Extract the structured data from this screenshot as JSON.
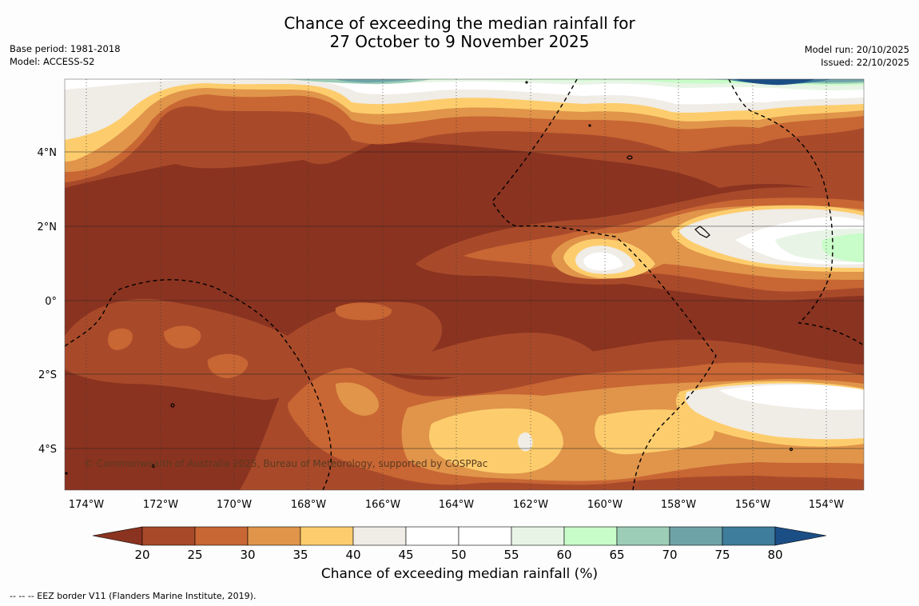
{
  "header": {
    "title_line1": "Chance of exceeding the median rainfall for",
    "title_line2": "27 October to 9 November 2025",
    "base_period": "Base period: 1981-2018",
    "model": "Model: ACCESS-S2",
    "model_run": "Model run: 20/10/2025",
    "issued": "Issued: 22/10/2025"
  },
  "map": {
    "x_ticks": [
      "174°W",
      "172°W",
      "170°W",
      "168°W",
      "166°W",
      "164°W",
      "162°W",
      "160°W",
      "158°W",
      "156°W",
      "154°W"
    ],
    "y_ticks": [
      "4°N",
      "2°N",
      "0°",
      "2°S",
      "4°S"
    ],
    "copyright": "© Commonwealth of Australia 2025, Bureau of Meteorology, supported by COSPPac"
  },
  "colorbar": {
    "ticks": [
      "20",
      "25",
      "30",
      "35",
      "40",
      "45",
      "50",
      "55",
      "60",
      "65",
      "70",
      "75",
      "80"
    ],
    "label": "Chance of exceeding median rainfall (%)",
    "colors": {
      "below20": "#8a3320",
      "b20_25": "#a84a2a",
      "b25_30": "#c86634",
      "b30_35": "#e0954a",
      "b35_40": "#fdcd6d",
      "b40_45": "#f0ece6",
      "b45_50": "#ffffff",
      "b50_55": "#ffffff",
      "b55_60": "#e8f5e6",
      "b60_65": "#c8fcc8",
      "b65_70": "#9ccdb7",
      "b70_75": "#6ea4a8",
      "b75_80": "#3f7d9c",
      "above80": "#1c4e86"
    }
  },
  "legend": {
    "eez": "--  --  -- EEZ border V11 (Flanders Marine Institute, 2019)."
  }
}
